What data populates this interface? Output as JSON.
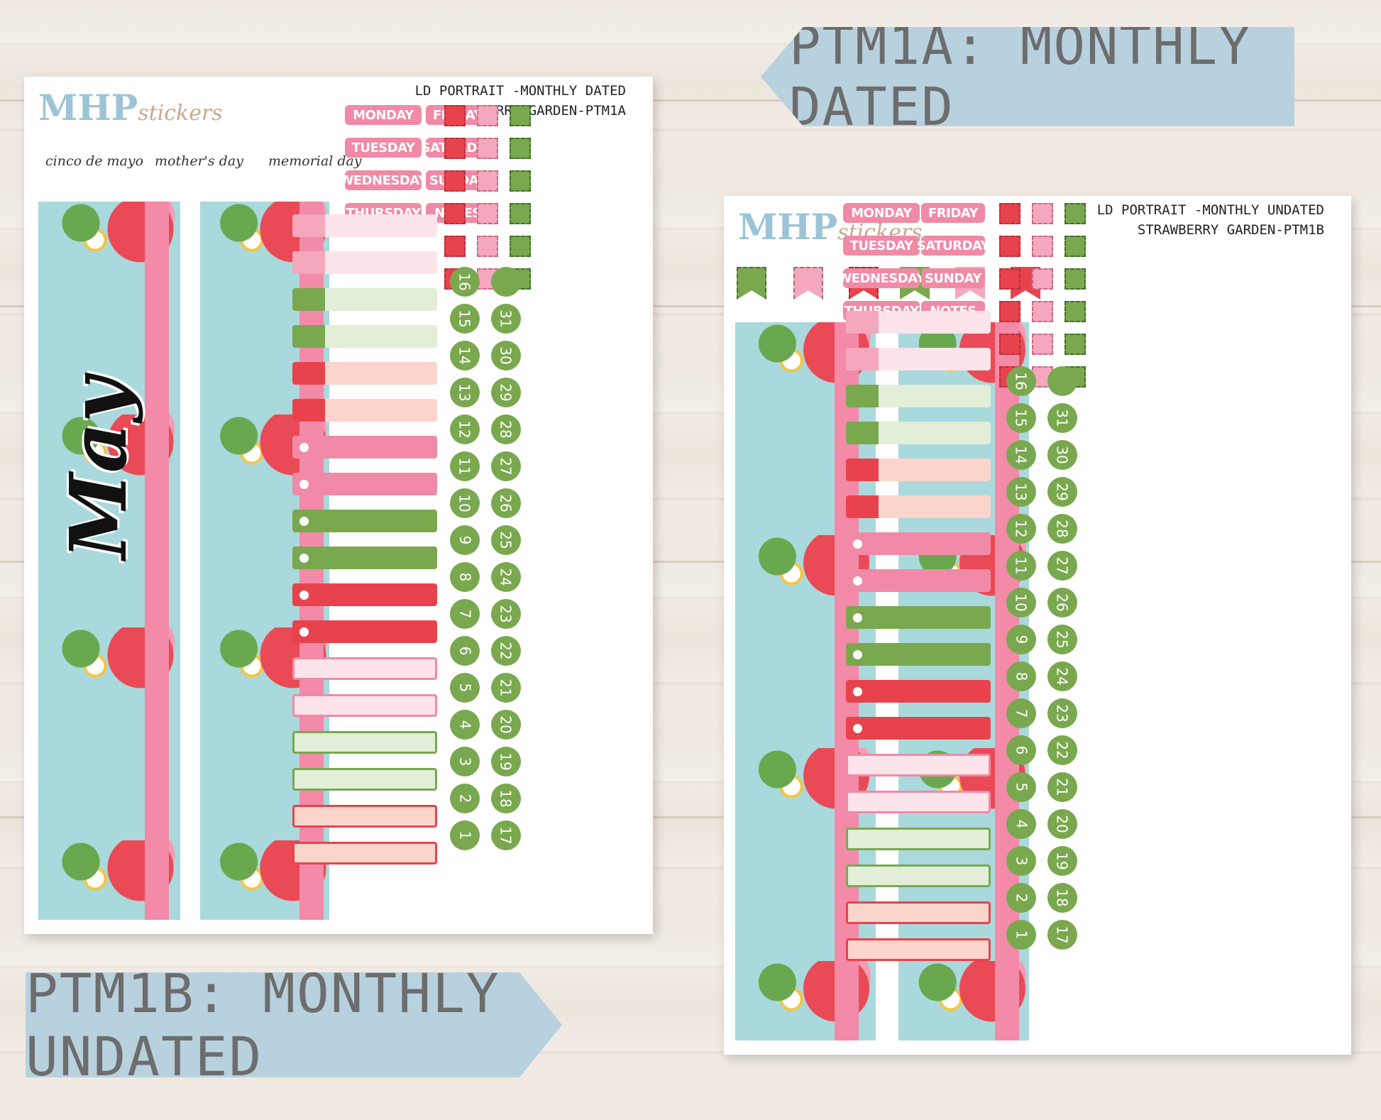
{
  "banners": {
    "top_right": "PTM1A: MONTHLY DATED",
    "bottom_left": "PTM1B: MONTHLY UNDATED"
  },
  "sheet_a": {
    "logo_main": "MHP",
    "logo_sub": "stickers",
    "title_line1": "LD PORTRAIT -MONTHLY DATED",
    "title_line2": "STRAWBERRY GARDEN-PTM1A",
    "holidays": [
      "cinco de mayo",
      "mother's day",
      "memorial day"
    ],
    "month_script": "May",
    "days_left": [
      "MONDAY",
      "TUESDAY",
      "WEDNESDAY",
      "THURSDAY"
    ],
    "days_right": [
      "FRIDAY",
      "SATURDAY",
      "SUNDAY",
      "NOTES"
    ],
    "dates_col1": [
      "16",
      "15",
      "14",
      "13",
      "12",
      "11",
      "10",
      "9",
      "8",
      "7",
      "6",
      "5",
      "4",
      "3",
      "2",
      "1"
    ],
    "dates_col2": [
      "",
      "31",
      "30",
      "29",
      "28",
      "27",
      "26",
      "25",
      "24",
      "23",
      "22",
      "21",
      "20",
      "19",
      "18",
      "17"
    ]
  },
  "sheet_b": {
    "logo_main": "MHP",
    "logo_sub": "stickers",
    "title_line1": "LD PORTRAIT -MONTHLY UNDATED",
    "title_line2": "STRAWBERRY GARDEN-PTM1B",
    "days_left": [
      "MONDAY",
      "TUESDAY",
      "WEDNESDAY",
      "THURSDAY"
    ],
    "days_right": [
      "FRIDAY",
      "SATURDAY",
      "SUNDAY",
      "NOTES"
    ],
    "dates_col1": [
      "16",
      "15",
      "14",
      "13",
      "12",
      "11",
      "10",
      "9",
      "8",
      "7",
      "6",
      "5",
      "4",
      "3",
      "2",
      "1"
    ],
    "dates_col2": [
      "",
      "31",
      "30",
      "29",
      "28",
      "27",
      "26",
      "25",
      "24",
      "23",
      "22",
      "21",
      "20",
      "19",
      "18",
      "17"
    ]
  },
  "colors": {
    "pink": "#f08aa6",
    "red": "#e8434d",
    "green": "#79a84e",
    "teal": "#a9d9dc",
    "banner": "#b8d1df"
  }
}
